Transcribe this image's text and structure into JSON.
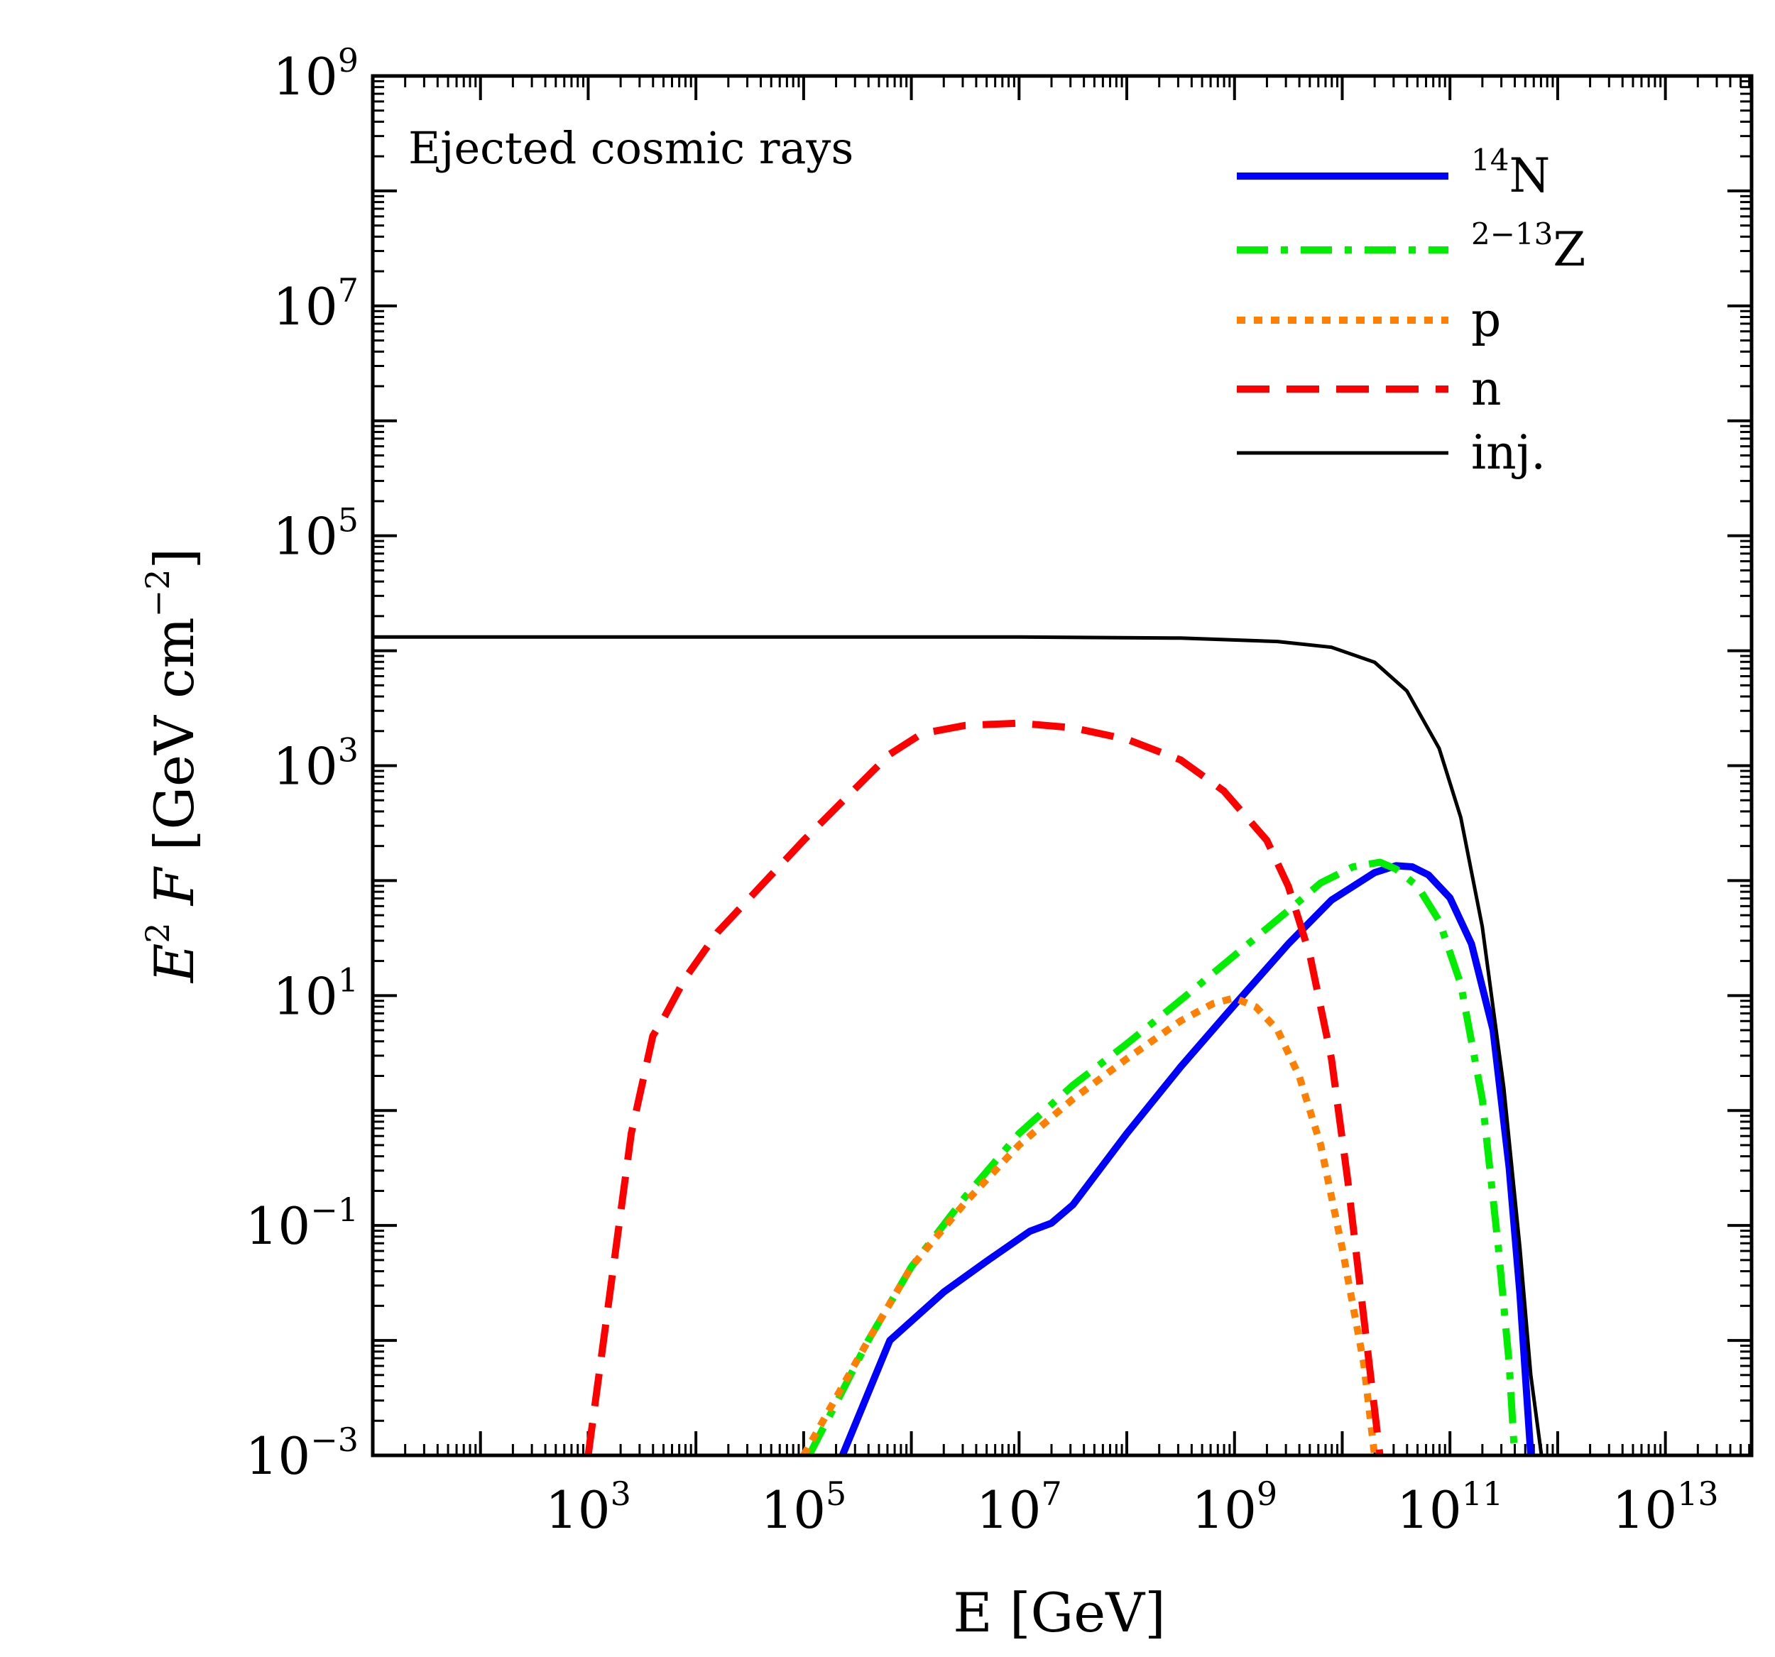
{
  "chart_data": {
    "type": "line",
    "xscale": "log",
    "yscale": "log",
    "annotation": "Ejected cosmic rays",
    "xlabel": {
      "text": "E [GeV]"
    },
    "ylabel": {
      "base": "E",
      "base_sup": "2",
      "var": "F",
      "unit_open": "[GeV cm",
      "unit_sup": "−2",
      "unit_close": "]"
    },
    "xlim_log10": [
      1.0,
      13.8
    ],
    "ylim_log10": [
      -3,
      9
    ],
    "x_ticks": [
      {
        "base": "10",
        "exp": "3",
        "log10": 3
      },
      {
        "base": "10",
        "exp": "5",
        "log10": 5
      },
      {
        "base": "10",
        "exp": "7",
        "log10": 7
      },
      {
        "base": "10",
        "exp": "9",
        "log10": 9
      },
      {
        "base": "10",
        "exp": "11",
        "log10": 11
      },
      {
        "base": "10",
        "exp": "13",
        "log10": 13
      }
    ],
    "y_ticks": [
      {
        "base": "10",
        "exp": "−3",
        "log10": -3
      },
      {
        "base": "10",
        "exp": "−1",
        "log10": -1
      },
      {
        "base": "10",
        "exp": "1",
        "log10": 1
      },
      {
        "base": "10",
        "exp": "3",
        "log10": 3
      },
      {
        "base": "10",
        "exp": "5",
        "log10": 5
      },
      {
        "base": "10",
        "exp": "7",
        "log10": 7
      },
      {
        "base": "10",
        "exp": "9",
        "log10": 9
      }
    ],
    "legend_position": "top-right",
    "series": [
      {
        "name": "14N",
        "label_sup": "14",
        "label_main": "N",
        "color": "#0000ff",
        "style": "solid",
        "width": 10,
        "points": [
          [
            5.36,
            -3.0
          ],
          [
            5.8,
            -2.0
          ],
          [
            6.3,
            -1.58
          ],
          [
            6.7,
            -1.31
          ],
          [
            7.1,
            -1.05
          ],
          [
            7.3,
            -0.98
          ],
          [
            7.5,
            -0.82
          ],
          [
            8.0,
            -0.2
          ],
          [
            8.5,
            0.38
          ],
          [
            9.0,
            0.92
          ],
          [
            9.5,
            1.45
          ],
          [
            9.9,
            1.83
          ],
          [
            10.3,
            2.07
          ],
          [
            10.5,
            2.13
          ],
          [
            10.65,
            2.12
          ],
          [
            10.8,
            2.05
          ],
          [
            11.0,
            1.85
          ],
          [
            11.2,
            1.45
          ],
          [
            11.4,
            0.7
          ],
          [
            11.55,
            -0.5
          ],
          [
            11.65,
            -1.6
          ],
          [
            11.7,
            -2.3
          ],
          [
            11.75,
            -3.0
          ]
        ]
      },
      {
        "name": "2-13Z",
        "label_sup": "2−13",
        "label_main": "Z",
        "color": "#00ee00",
        "style": "dashdot",
        "width": 10,
        "points": [
          [
            5.05,
            -3.0
          ],
          [
            5.3,
            -2.55
          ],
          [
            5.6,
            -2.0
          ],
          [
            6.0,
            -1.36
          ],
          [
            6.5,
            -0.75
          ],
          [
            7.0,
            -0.2
          ],
          [
            7.5,
            0.22
          ],
          [
            8.0,
            0.58
          ],
          [
            8.5,
            0.96
          ],
          [
            9.0,
            1.35
          ],
          [
            9.5,
            1.74
          ],
          [
            9.8,
            1.98
          ],
          [
            10.1,
            2.12
          ],
          [
            10.35,
            2.16
          ],
          [
            10.5,
            2.1
          ],
          [
            10.7,
            1.95
          ],
          [
            10.9,
            1.65
          ],
          [
            11.1,
            1.1
          ],
          [
            11.3,
            0.1
          ],
          [
            11.45,
            -1.2
          ],
          [
            11.55,
            -2.2
          ],
          [
            11.6,
            -3.0
          ]
        ]
      },
      {
        "name": "p",
        "label_sup": "",
        "label_main": "p",
        "color": "#ff8000",
        "style": "dotted",
        "width": 10,
        "points": [
          [
            5.0,
            -3.0
          ],
          [
            5.3,
            -2.5
          ],
          [
            5.6,
            -2.0
          ],
          [
            6.0,
            -1.36
          ],
          [
            6.5,
            -0.8
          ],
          [
            7.0,
            -0.3
          ],
          [
            7.5,
            0.1
          ],
          [
            8.0,
            0.45
          ],
          [
            8.5,
            0.78
          ],
          [
            8.8,
            0.93
          ],
          [
            9.0,
            0.98
          ],
          [
            9.2,
            0.9
          ],
          [
            9.4,
            0.7
          ],
          [
            9.6,
            0.3
          ],
          [
            9.8,
            -0.3
          ],
          [
            10.0,
            -1.2
          ],
          [
            10.2,
            -2.2
          ],
          [
            10.3,
            -3.0
          ]
        ]
      },
      {
        "name": "n",
        "label_sup": "",
        "label_main": "n",
        "color": "#ff0000",
        "style": "dashed",
        "width": 10,
        "points": [
          [
            3.0,
            -3.0
          ],
          [
            3.2,
            -1.6
          ],
          [
            3.4,
            -0.2
          ],
          [
            3.6,
            0.65
          ],
          [
            3.7,
            0.8
          ],
          [
            3.9,
            1.15
          ],
          [
            4.2,
            1.55
          ],
          [
            4.6,
            1.95
          ],
          [
            5.0,
            2.35
          ],
          [
            5.5,
            2.82
          ],
          [
            5.8,
            3.1
          ],
          [
            6.1,
            3.28
          ],
          [
            6.5,
            3.35
          ],
          [
            7.0,
            3.37
          ],
          [
            7.5,
            3.33
          ],
          [
            8.0,
            3.23
          ],
          [
            8.5,
            3.05
          ],
          [
            8.9,
            2.78
          ],
          [
            9.3,
            2.35
          ],
          [
            9.5,
            1.95
          ],
          [
            9.7,
            1.35
          ],
          [
            9.9,
            0.45
          ],
          [
            10.05,
            -0.6
          ],
          [
            10.2,
            -1.8
          ],
          [
            10.3,
            -2.6
          ],
          [
            10.35,
            -3.0
          ]
        ]
      },
      {
        "name": "inj.",
        "label_sup": "",
        "label_main": "inj.",
        "color": "#000000",
        "style": "solid",
        "width": 5,
        "points": [
          [
            1.0,
            4.12
          ],
          [
            3.0,
            4.12
          ],
          [
            5.0,
            4.12
          ],
          [
            7.0,
            4.12
          ],
          [
            8.5,
            4.11
          ],
          [
            9.4,
            4.08
          ],
          [
            9.9,
            4.03
          ],
          [
            10.3,
            3.9
          ],
          [
            10.6,
            3.65
          ],
          [
            10.9,
            3.15
          ],
          [
            11.1,
            2.55
          ],
          [
            11.3,
            1.6
          ],
          [
            11.5,
            0.2
          ],
          [
            11.65,
            -1.2
          ],
          [
            11.75,
            -2.3
          ],
          [
            11.85,
            -3.0
          ]
        ]
      }
    ]
  }
}
